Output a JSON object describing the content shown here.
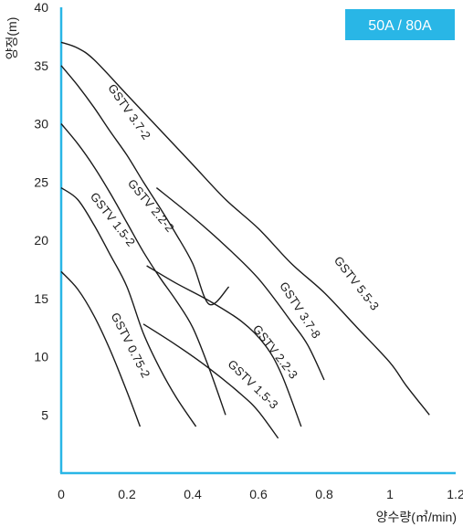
{
  "chart_data": {
    "type": "line",
    "badge": "50A / 80A",
    "xlabel": "양수량(㎥/min)",
    "ylabel": "양정(m)",
    "xlim": [
      0,
      1.2
    ],
    "ylim": [
      0,
      40
    ],
    "x_ticks": [
      "0",
      "0.2",
      "0.4",
      "0.6",
      "0.8",
      "1",
      "1.2"
    ],
    "y_ticks": [
      "5",
      "10",
      "15",
      "20",
      "25",
      "30",
      "35",
      "40"
    ],
    "grid": false,
    "accent_color": "#29b6e6",
    "series": [
      {
        "name": "GSTV 0.75-2",
        "x": [
          0,
          0.05,
          0.1,
          0.15,
          0.2,
          0.24
        ],
        "y": [
          17.3,
          15.8,
          13.5,
          10.5,
          7.0,
          4.0
        ]
      },
      {
        "name": "GSTV 1.5-2",
        "x": [
          0,
          0.05,
          0.1,
          0.15,
          0.2,
          0.25,
          0.3,
          0.35,
          0.41
        ],
        "y": [
          24.5,
          23.5,
          21.3,
          18.7,
          16.0,
          12.0,
          9.0,
          6.5,
          4.0
        ]
      },
      {
        "name": "GSTV 1.5-3",
        "x": [
          0.25,
          0.35,
          0.45,
          0.55,
          0.6,
          0.66
        ],
        "y": [
          12.8,
          11.0,
          9.0,
          6.7,
          5.3,
          3.0
        ]
      },
      {
        "name": "GSTV 2.2-2",
        "x": [
          0,
          0.05,
          0.1,
          0.15,
          0.2,
          0.25,
          0.3,
          0.35,
          0.4,
          0.45,
          0.5
        ],
        "y": [
          30.0,
          28.3,
          26.3,
          24.0,
          21.5,
          19.0,
          16.8,
          14.8,
          12.5,
          9.0,
          5.0
        ]
      },
      {
        "name": "GSTV 2.2-3",
        "x": [
          0.26,
          0.35,
          0.45,
          0.55,
          0.62,
          0.67,
          0.73
        ],
        "y": [
          17.8,
          16.3,
          14.8,
          13.0,
          11.0,
          8.5,
          4.0
        ]
      },
      {
        "name": "GSTV 3.7-2",
        "x": [
          0,
          0.05,
          0.1,
          0.15,
          0.2,
          0.25,
          0.3,
          0.35,
          0.4,
          0.45,
          0.51
        ],
        "y": [
          35.0,
          33.3,
          31.4,
          29.3,
          27.3,
          25.0,
          22.8,
          20.5,
          18.0,
          14.5,
          16.0
        ]
      },
      {
        "name": "GSTV 3.7-8",
        "x": [
          0.29,
          0.4,
          0.5,
          0.6,
          0.7,
          0.75,
          0.8
        ],
        "y": [
          24.5,
          22.0,
          19.5,
          16.7,
          13.0,
          11.0,
          8.0
        ]
      },
      {
        "name": "GSTV 5.5-3",
        "x": [
          0,
          0.05,
          0.1,
          0.2,
          0.3,
          0.4,
          0.5,
          0.6,
          0.7,
          0.8,
          0.9,
          1.0,
          1.05,
          1.12
        ],
        "y": [
          37.0,
          36.5,
          35.5,
          32.5,
          29.5,
          26.5,
          23.5,
          21.0,
          18.0,
          15.5,
          12.5,
          9.5,
          7.5,
          5.0
        ]
      }
    ]
  }
}
